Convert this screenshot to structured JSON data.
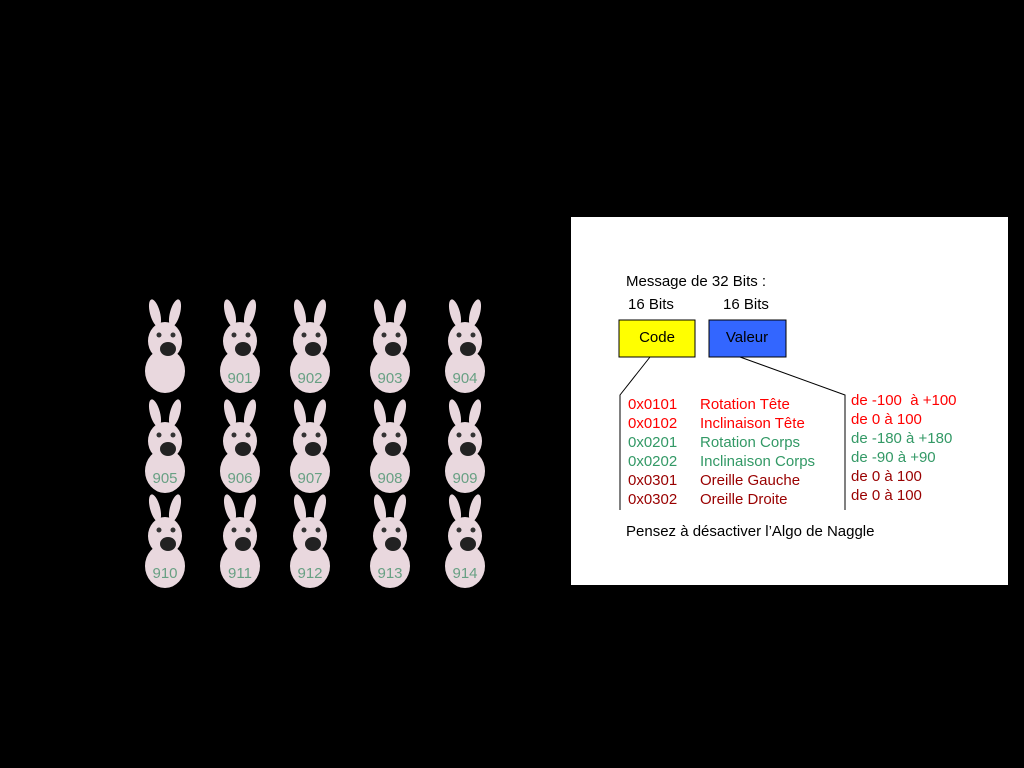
{
  "figures": {
    "labels": [
      "901",
      "902",
      "903",
      "904",
      "905",
      "906",
      "907",
      "908",
      "909",
      "910",
      "911",
      "912",
      "913",
      "914"
    ]
  },
  "panel": {
    "title": "Message de 32 Bits :",
    "code_bits": "16 Bits",
    "value_bits": "16 Bits",
    "code_box": {
      "label": "Code",
      "color": "#ffff00"
    },
    "value_box": {
      "label": "Valeur",
      "color": "#3366ff"
    },
    "rows": [
      {
        "code": "0x0101",
        "name": "Rotation Tête",
        "range": "de -100  à +100",
        "color": "#ff0000"
      },
      {
        "code": "0x0102",
        "name": "Inclinaison Tête",
        "range": "de 0 à 100",
        "color": "#ff0000"
      },
      {
        "code": "0x0201",
        "name": "Rotation Corps",
        "range": "de -180 à +180",
        "color": "#339966"
      },
      {
        "code": "0x0202",
        "name": "Inclinaison Corps",
        "range": "de -90 à +90",
        "color": "#339966"
      },
      {
        "code": "0x0301",
        "name": "Oreille Gauche",
        "range": "de 0 à 100",
        "color": "#990000"
      },
      {
        "code": "0x0302",
        "name": "Oreille Droite",
        "range": "de 0 à 100",
        "color": "#990000"
      }
    ],
    "note": "Pensez à désactiver l’Algo de Naggle"
  }
}
